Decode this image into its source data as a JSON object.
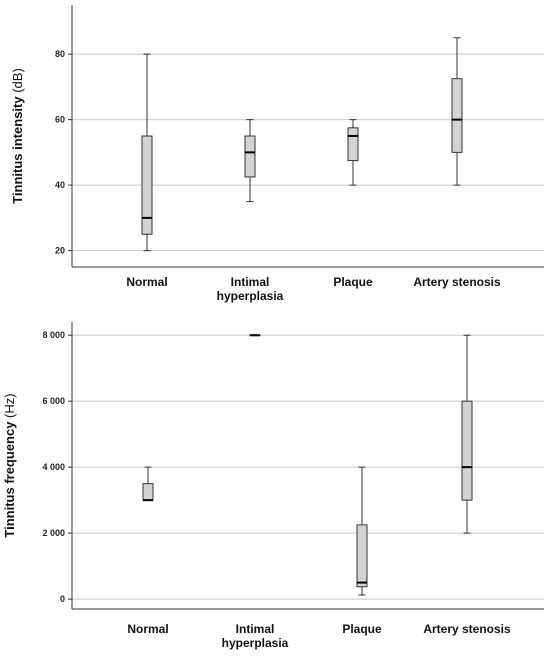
{
  "chart_data": [
    {
      "type": "boxplot",
      "ylabel": "Tinnitus intensity",
      "yunit": "(dB)",
      "ylim": [
        15,
        95
      ],
      "yticks": [
        20,
        40,
        60,
        80
      ],
      "yticklabels": [
        "20",
        "40",
        "60",
        "80"
      ],
      "grid": true,
      "categories": [
        {
          "label": [
            "Normal"
          ],
          "min": 20,
          "q1": 25,
          "median": 30,
          "q3": 55,
          "max": 80
        },
        {
          "label": [
            "Intimal",
            "hyperplasia"
          ],
          "min": 35,
          "q1": 42.5,
          "median": 50,
          "q3": 55,
          "max": 60
        },
        {
          "label": [
            "Plaque"
          ],
          "min": 40,
          "q1": 47.5,
          "median": 55,
          "q3": 57.5,
          "max": 60
        },
        {
          "label": [
            "Artery stenosis"
          ],
          "min": 40,
          "q1": 50,
          "median": 60,
          "q3": 72.5,
          "max": 85
        }
      ]
    },
    {
      "type": "boxplot",
      "ylabel": "Tinnitus frequency",
      "yunit": "(Hz)",
      "ylim": [
        -300,
        8400
      ],
      "yticks": [
        0,
        2000,
        4000,
        6000,
        8000
      ],
      "yticklabels": [
        "0",
        "2 000",
        "4 000",
        "6 000",
        "8 000"
      ],
      "grid": true,
      "categories": [
        {
          "label": [
            "Normal"
          ],
          "min": 3000,
          "q1": 3000,
          "median": 3000,
          "q3": 3500,
          "max": 4000
        },
        {
          "label": [
            "Intimal",
            "hyperplasia"
          ],
          "min": 8000,
          "q1": 8000,
          "median": 8000,
          "q3": 8000,
          "max": 8000
        },
        {
          "label": [
            "Plaque"
          ],
          "min": 125,
          "q1": 375,
          "median": 500,
          "q3": 2250,
          "max": 4000
        },
        {
          "label": [
            "Artery stenosis"
          ],
          "min": 2000,
          "q1": 3000,
          "median": 4000,
          "q3": 6000,
          "max": 8000
        }
      ]
    }
  ]
}
